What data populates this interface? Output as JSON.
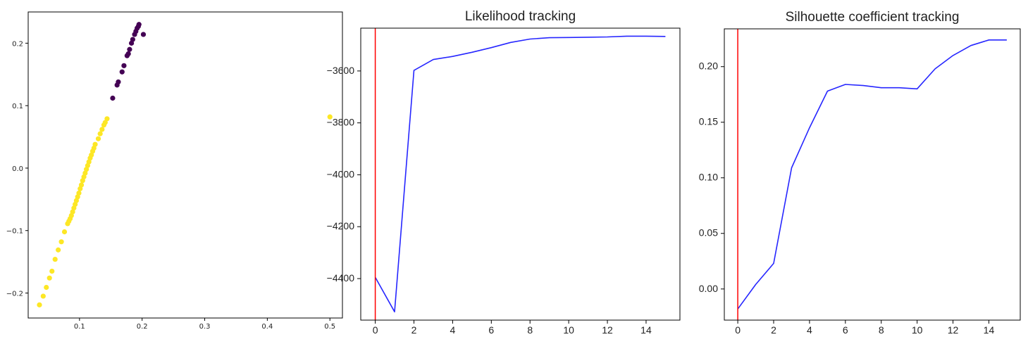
{
  "chart_data": [
    {
      "type": "scatter",
      "title": "",
      "xlabel": "",
      "ylabel": "",
      "xlim": [
        0.018,
        0.52
      ],
      "ylim": [
        -0.24,
        0.25
      ],
      "xticks": [
        0.1,
        0.2,
        0.3,
        0.4,
        0.5
      ],
      "xtick_labels": [
        "0.1",
        "0.2",
        "0.3",
        "0.4",
        "0.5"
      ],
      "yticks": [
        -0.2,
        -0.1,
        0.0,
        0.1,
        0.2
      ],
      "ytick_labels": [
        "−0.2",
        "−0.1",
        "0.0",
        "0.1",
        "0.2"
      ],
      "grid": false,
      "colors": {
        "cluster_0": "#440154",
        "cluster_1": "#fde725"
      },
      "series": [
        {
          "color": "#440154",
          "points": [
            [
              0.153,
              0.112
            ],
            [
              0.16,
              0.133
            ],
            [
              0.162,
              0.138
            ],
            [
              0.168,
              0.154
            ],
            [
              0.171,
              0.164
            ],
            [
              0.176,
              0.18
            ],
            [
              0.178,
              0.183
            ],
            [
              0.18,
              0.19
            ],
            [
              0.183,
              0.2
            ],
            [
              0.185,
              0.206
            ],
            [
              0.188,
              0.214
            ],
            [
              0.19,
              0.219
            ],
            [
              0.192,
              0.224
            ],
            [
              0.195,
              0.23
            ],
            [
              0.194,
              0.227
            ],
            [
              0.202,
              0.214
            ]
          ]
        },
        {
          "color": "#fde725",
          "points": [
            [
              0.036,
              -0.219
            ],
            [
              0.042,
              -0.205
            ],
            [
              0.047,
              -0.191
            ],
            [
              0.052,
              -0.176
            ],
            [
              0.056,
              -0.165
            ],
            [
              0.061,
              -0.146
            ],
            [
              0.066,
              -0.131
            ],
            [
              0.071,
              -0.118
            ],
            [
              0.076,
              -0.102
            ],
            [
              0.081,
              -0.089
            ],
            [
              0.083,
              -0.085
            ],
            [
              0.085,
              -0.081
            ],
            [
              0.087,
              -0.076
            ],
            [
              0.089,
              -0.07
            ],
            [
              0.091,
              -0.064
            ],
            [
              0.093,
              -0.058
            ],
            [
              0.095,
              -0.052
            ],
            [
              0.097,
              -0.046
            ],
            [
              0.099,
              -0.04
            ],
            [
              0.101,
              -0.033
            ],
            [
              0.103,
              -0.027
            ],
            [
              0.105,
              -0.02
            ],
            [
              0.107,
              -0.014
            ],
            [
              0.109,
              -0.008
            ],
            [
              0.111,
              -0.002
            ],
            [
              0.113,
              0.004
            ],
            [
              0.115,
              0.01
            ],
            [
              0.117,
              0.016
            ],
            [
              0.119,
              0.021
            ],
            [
              0.121,
              0.027
            ],
            [
              0.123,
              0.032
            ],
            [
              0.125,
              0.038
            ],
            [
              0.13,
              0.047
            ],
            [
              0.133,
              0.055
            ],
            [
              0.136,
              0.062
            ],
            [
              0.139,
              0.069
            ],
            [
              0.141,
              0.073
            ],
            [
              0.144,
              0.079
            ],
            [
              0.5,
              0.082
            ]
          ]
        }
      ]
    },
    {
      "type": "line",
      "title": "Likelihood tracking",
      "xlabel": "",
      "ylabel": "",
      "xlim": [
        -0.75,
        15.75
      ],
      "ylim": [
        -4560,
        -3435
      ],
      "xticks": [
        0,
        2,
        4,
        6,
        8,
        10,
        12,
        14
      ],
      "xtick_labels": [
        "0",
        "2",
        "4",
        "6",
        "8",
        "10",
        "12",
        "14"
      ],
      "yticks": [
        -4400,
        -4200,
        -4000,
        -3800,
        -3600
      ],
      "ytick_labels": [
        "−4400",
        "−4200",
        "−4000",
        "−3800",
        "−3600"
      ],
      "grid": false,
      "vline": {
        "x": 0,
        "color": "#ff0000"
      },
      "series": [
        {
          "color": "#0000ff",
          "x": [
            0,
            1,
            2,
            3,
            4,
            5,
            6,
            7,
            8,
            9,
            10,
            11,
            12,
            13,
            14,
            15
          ],
          "y": [
            -4395,
            -4528,
            -3598,
            -3556,
            -3544,
            -3528,
            -3510,
            -3490,
            -3477,
            -3472,
            -3471,
            -3470,
            -3469,
            -3466,
            -3466,
            -3467
          ]
        }
      ]
    },
    {
      "type": "line",
      "title": "Silhouette coefficient tracking",
      "xlabel": "",
      "ylabel": "",
      "xlim": [
        -0.75,
        15.75
      ],
      "ylim": [
        -0.028,
        0.234
      ],
      "xticks": [
        0,
        2,
        4,
        6,
        8,
        10,
        12,
        14
      ],
      "xtick_labels": [
        "0",
        "2",
        "4",
        "6",
        "8",
        "10",
        "12",
        "14"
      ],
      "yticks": [
        0.0,
        0.05,
        0.1,
        0.15,
        0.2
      ],
      "ytick_labels": [
        "0.00",
        "0.05",
        "0.10",
        "0.15",
        "0.20"
      ],
      "grid": false,
      "vline": {
        "x": 0,
        "color": "#ff0000"
      },
      "series": [
        {
          "color": "#0000ff",
          "x": [
            0,
            1,
            2,
            3,
            4,
            5,
            6,
            7,
            8,
            9,
            10,
            11,
            12,
            13,
            14,
            15
          ],
          "y": [
            -0.018,
            0.004,
            0.023,
            0.109,
            0.145,
            0.178,
            0.184,
            0.183,
            0.181,
            0.181,
            0.18,
            0.198,
            0.21,
            0.219,
            0.224,
            0.224
          ]
        }
      ]
    }
  ]
}
